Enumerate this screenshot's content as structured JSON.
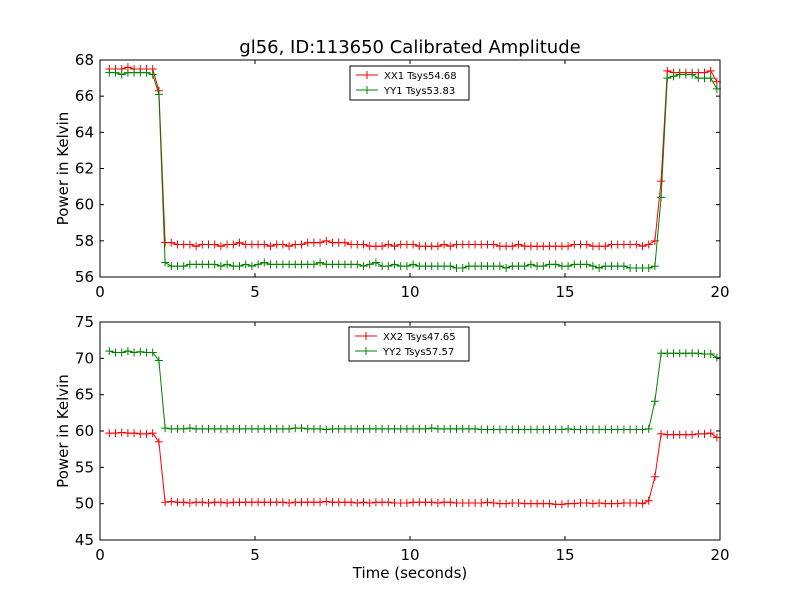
{
  "figure": {
    "title": "gl56, ID:113650 Calibrated Amplitude"
  },
  "chart_data": [
    {
      "type": "line",
      "title": "gl56, ID:113650 Calibrated Amplitude",
      "xlabel": "",
      "ylabel": "Power in Kelvin",
      "xlim": [
        0,
        20
      ],
      "ylim": [
        56,
        68
      ],
      "xticks": [
        0,
        5,
        10,
        15,
        20
      ],
      "yticks": [
        56,
        58,
        60,
        62,
        64,
        66,
        68
      ],
      "legend_position": "top-center",
      "grid": false,
      "x": [
        0.3,
        0.5,
        0.7,
        0.9,
        1.1,
        1.3,
        1.5,
        1.7,
        1.9,
        2.1,
        2.3,
        2.5,
        2.7,
        2.9,
        3.1,
        3.3,
        3.5,
        3.7,
        3.9,
        4.1,
        4.3,
        4.5,
        4.7,
        4.9,
        5.1,
        5.3,
        5.5,
        5.7,
        5.9,
        6.1,
        6.3,
        6.5,
        6.7,
        6.9,
        7.1,
        7.3,
        7.5,
        7.7,
        7.9,
        8.1,
        8.3,
        8.5,
        8.7,
        8.9,
        9.1,
        9.3,
        9.5,
        9.7,
        9.9,
        10.1,
        10.3,
        10.5,
        10.7,
        10.9,
        11.1,
        11.3,
        11.5,
        11.7,
        11.9,
        12.1,
        12.3,
        12.5,
        12.7,
        12.9,
        13.1,
        13.3,
        13.5,
        13.7,
        13.9,
        14.1,
        14.3,
        14.5,
        14.7,
        14.9,
        15.1,
        15.3,
        15.5,
        15.7,
        15.9,
        16.1,
        16.3,
        16.5,
        16.7,
        16.9,
        17.1,
        17.3,
        17.5,
        17.7,
        17.9,
        18.1,
        18.3,
        18.5,
        18.7,
        18.9,
        19.1,
        19.3,
        19.5,
        19.7,
        19.9
      ],
      "series": [
        {
          "name": "XX1 Tsys54.68",
          "color": "#ff0000",
          "values": [
            67.5,
            67.5,
            67.5,
            67.6,
            67.5,
            67.5,
            67.5,
            67.5,
            66.3,
            57.9,
            57.9,
            57.8,
            57.8,
            57.8,
            57.7,
            57.8,
            57.8,
            57.8,
            57.7,
            57.8,
            57.8,
            57.9,
            57.8,
            57.8,
            57.8,
            57.8,
            57.7,
            57.8,
            57.8,
            57.7,
            57.8,
            57.8,
            57.9,
            57.9,
            57.9,
            58.0,
            57.9,
            57.9,
            57.9,
            57.8,
            57.8,
            57.8,
            57.7,
            57.7,
            57.7,
            57.8,
            57.7,
            57.8,
            57.8,
            57.8,
            57.7,
            57.7,
            57.7,
            57.7,
            57.8,
            57.7,
            57.8,
            57.8,
            57.8,
            57.8,
            57.8,
            57.8,
            57.8,
            57.7,
            57.7,
            57.7,
            57.8,
            57.7,
            57.7,
            57.7,
            57.7,
            57.7,
            57.7,
            57.7,
            57.7,
            57.8,
            57.8,
            57.8,
            57.7,
            57.7,
            57.7,
            57.8,
            57.8,
            57.8,
            57.8,
            57.8,
            57.7,
            57.8,
            58.0,
            61.3,
            67.4,
            67.3,
            67.3,
            67.3,
            67.3,
            67.3,
            67.3,
            67.4,
            66.8
          ]
        },
        {
          "name": "YY1 Tsys53.83",
          "color": "#008000",
          "values": [
            67.3,
            67.3,
            67.2,
            67.3,
            67.3,
            67.3,
            67.3,
            67.2,
            66.1,
            56.8,
            56.6,
            56.6,
            56.6,
            56.7,
            56.7,
            56.7,
            56.7,
            56.7,
            56.6,
            56.7,
            56.6,
            56.6,
            56.7,
            56.6,
            56.7,
            56.8,
            56.7,
            56.7,
            56.7,
            56.7,
            56.7,
            56.7,
            56.7,
            56.7,
            56.8,
            56.7,
            56.7,
            56.7,
            56.7,
            56.7,
            56.7,
            56.6,
            56.7,
            56.8,
            56.6,
            56.6,
            56.7,
            56.6,
            56.6,
            56.7,
            56.6,
            56.6,
            56.6,
            56.6,
            56.6,
            56.6,
            56.5,
            56.5,
            56.6,
            56.6,
            56.6,
            56.6,
            56.6,
            56.6,
            56.5,
            56.6,
            56.6,
            56.6,
            56.7,
            56.6,
            56.6,
            56.7,
            56.7,
            56.6,
            56.6,
            56.7,
            56.7,
            56.7,
            56.6,
            56.5,
            56.6,
            56.6,
            56.6,
            56.6,
            56.5,
            56.5,
            56.5,
            56.5,
            56.6,
            60.4,
            67.0,
            67.1,
            67.2,
            67.2,
            67.2,
            67.0,
            67.0,
            67.0,
            66.4
          ]
        }
      ]
    },
    {
      "type": "line",
      "title": "",
      "xlabel": "Time (seconds)",
      "ylabel": "Power in Kelvin",
      "xlim": [
        0,
        20
      ],
      "ylim": [
        45,
        75
      ],
      "xticks": [
        0,
        5,
        10,
        15,
        20
      ],
      "yticks": [
        45,
        50,
        55,
        60,
        65,
        70,
        75
      ],
      "legend_position": "top-center",
      "grid": false,
      "x": [
        0.3,
        0.5,
        0.7,
        0.9,
        1.1,
        1.3,
        1.5,
        1.7,
        1.9,
        2.1,
        2.3,
        2.5,
        2.7,
        2.9,
        3.1,
        3.3,
        3.5,
        3.7,
        3.9,
        4.1,
        4.3,
        4.5,
        4.7,
        4.9,
        5.1,
        5.3,
        5.5,
        5.7,
        5.9,
        6.1,
        6.3,
        6.5,
        6.7,
        6.9,
        7.1,
        7.3,
        7.5,
        7.7,
        7.9,
        8.1,
        8.3,
        8.5,
        8.7,
        8.9,
        9.1,
        9.3,
        9.5,
        9.7,
        9.9,
        10.1,
        10.3,
        10.5,
        10.7,
        10.9,
        11.1,
        11.3,
        11.5,
        11.7,
        11.9,
        12.1,
        12.3,
        12.5,
        12.7,
        12.9,
        13.1,
        13.3,
        13.5,
        13.7,
        13.9,
        14.1,
        14.3,
        14.5,
        14.7,
        14.9,
        15.1,
        15.3,
        15.5,
        15.7,
        15.9,
        16.1,
        16.3,
        16.5,
        16.7,
        16.9,
        17.1,
        17.3,
        17.5,
        17.7,
        17.9,
        18.1,
        18.3,
        18.5,
        18.7,
        18.9,
        19.1,
        19.3,
        19.5,
        19.7,
        19.9
      ],
      "series": [
        {
          "name": "XX2 Tsys47.65",
          "color": "#ff0000",
          "values": [
            59.7,
            59.7,
            59.8,
            59.7,
            59.7,
            59.6,
            59.6,
            59.7,
            58.5,
            50.2,
            50.3,
            50.2,
            50.2,
            50.1,
            50.2,
            50.2,
            50.1,
            50.2,
            50.2,
            50.1,
            50.2,
            50.2,
            50.2,
            50.2,
            50.2,
            50.2,
            50.2,
            50.2,
            50.2,
            50.1,
            50.2,
            50.2,
            50.2,
            50.2,
            50.2,
            50.3,
            50.2,
            50.2,
            50.2,
            50.2,
            50.1,
            50.2,
            50.1,
            50.2,
            50.2,
            50.2,
            50.1,
            50.1,
            50.1,
            50.2,
            50.2,
            50.2,
            50.2,
            50.1,
            50.2,
            50.2,
            50.1,
            50.1,
            50.1,
            50.1,
            50.1,
            50.2,
            50.1,
            50.0,
            50.0,
            50.1,
            50.1,
            50.0,
            50.0,
            50.0,
            50.0,
            50.0,
            49.9,
            49.9,
            50.0,
            50.0,
            50.1,
            50.1,
            50.0,
            50.1,
            50.0,
            50.0,
            50.0,
            50.1,
            50.1,
            50.1,
            50.0,
            50.4,
            53.7,
            59.6,
            59.5,
            59.5,
            59.5,
            59.5,
            59.5,
            59.6,
            59.6,
            59.7,
            59.1
          ]
        },
        {
          "name": "YY2 Tsys57.57",
          "color": "#008000",
          "values": [
            71.0,
            70.8,
            70.8,
            71.0,
            70.8,
            70.9,
            70.8,
            70.8,
            69.7,
            60.4,
            60.3,
            60.3,
            60.3,
            60.4,
            60.3,
            60.3,
            60.3,
            60.3,
            60.3,
            60.3,
            60.3,
            60.3,
            60.3,
            60.3,
            60.3,
            60.3,
            60.3,
            60.3,
            60.3,
            60.3,
            60.4,
            60.4,
            60.3,
            60.3,
            60.3,
            60.2,
            60.3,
            60.3,
            60.3,
            60.3,
            60.3,
            60.3,
            60.3,
            60.3,
            60.3,
            60.3,
            60.3,
            60.3,
            60.3,
            60.3,
            60.3,
            60.3,
            60.4,
            60.3,
            60.3,
            60.3,
            60.3,
            60.3,
            60.3,
            60.3,
            60.2,
            60.2,
            60.2,
            60.2,
            60.2,
            60.2,
            60.2,
            60.2,
            60.2,
            60.2,
            60.2,
            60.2,
            60.2,
            60.2,
            60.3,
            60.2,
            60.2,
            60.2,
            60.2,
            60.2,
            60.2,
            60.2,
            60.2,
            60.2,
            60.2,
            60.2,
            60.2,
            60.3,
            64.1,
            70.7,
            70.7,
            70.7,
            70.7,
            70.7,
            70.7,
            70.7,
            70.6,
            70.6,
            70.1
          ]
        }
      ]
    }
  ]
}
